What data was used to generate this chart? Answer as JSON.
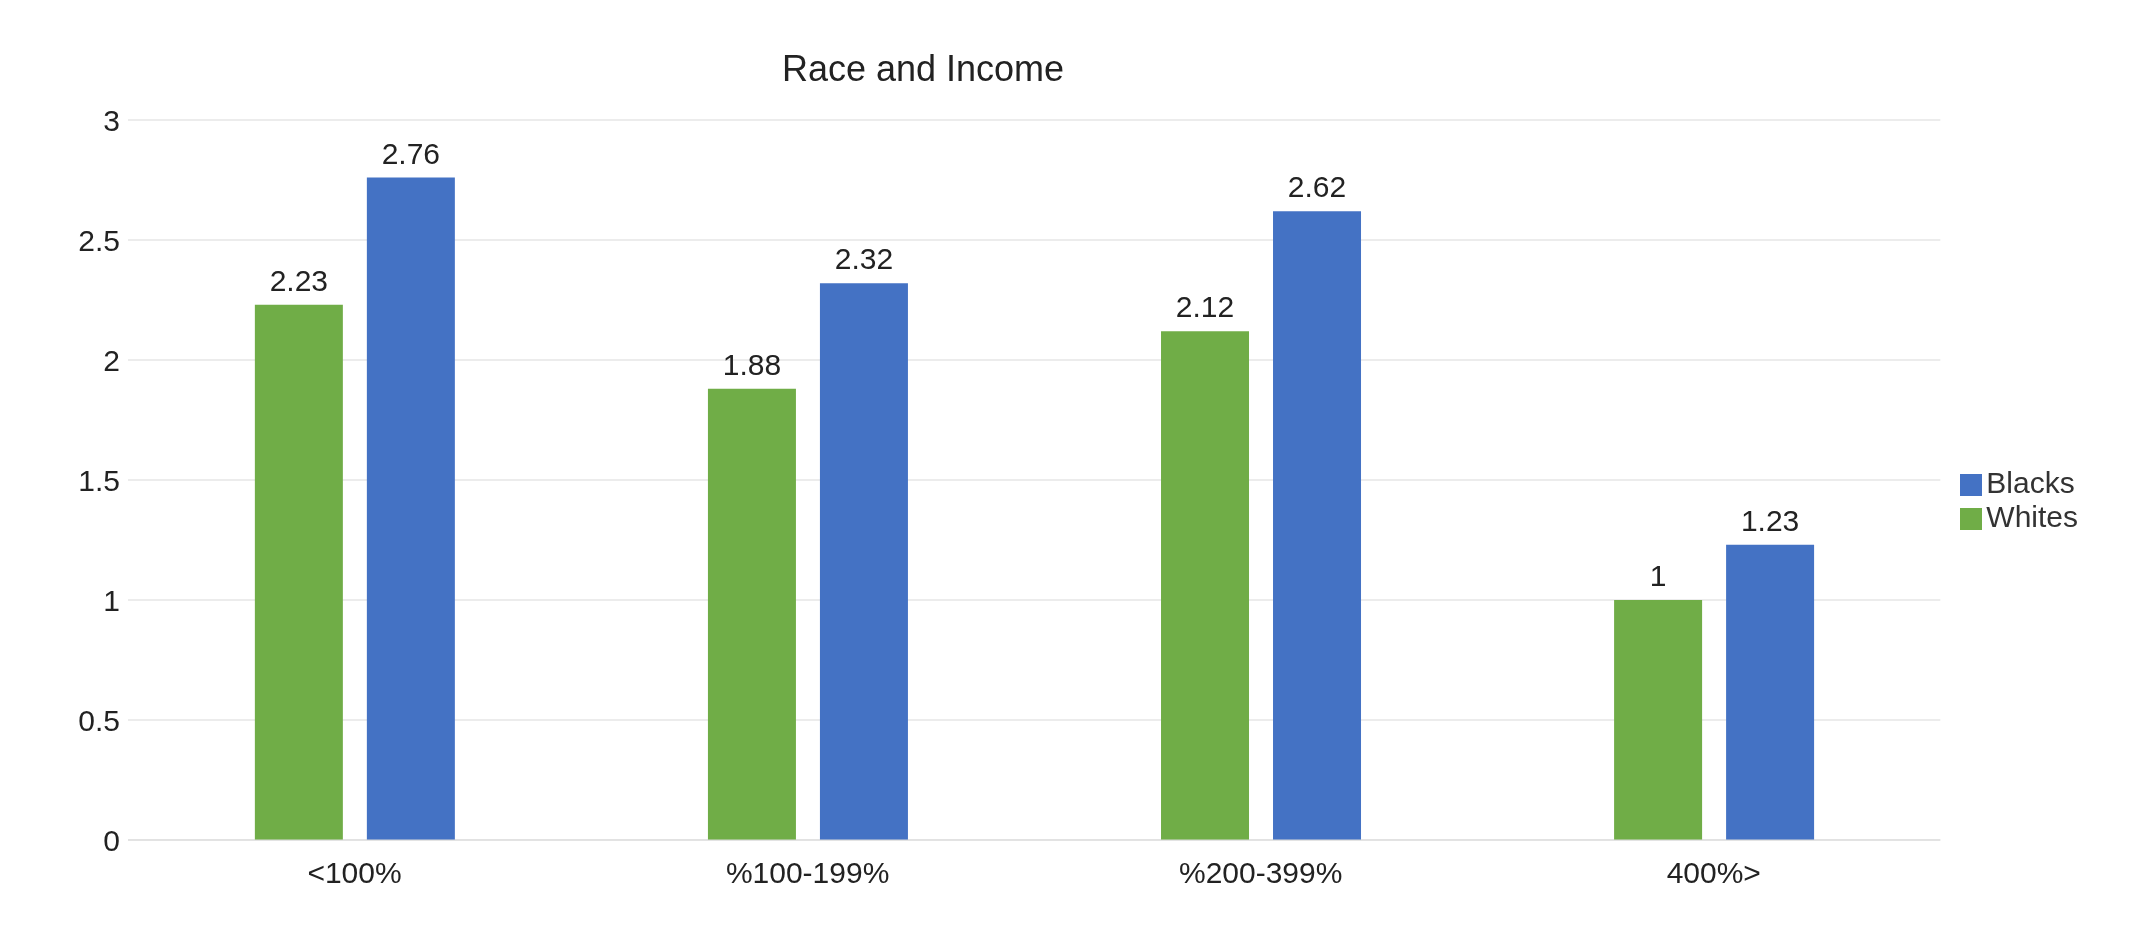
{
  "chart_data": {
    "type": "bar",
    "title": "Race and Income",
    "categories": [
      "<100%",
      "%100-199%",
      "%200-399%",
      "400%>"
    ],
    "series": [
      {
        "name": "Whites",
        "color": "#70ad47",
        "values": [
          2.23,
          1.88,
          2.12,
          1
        ]
      },
      {
        "name": "Blacks",
        "color": "#4472c4",
        "values": [
          2.76,
          2.32,
          2.62,
          1.23
        ]
      }
    ],
    "ylim": [
      0,
      3
    ],
    "yticks": [
      0,
      0.5,
      1,
      1.5,
      2,
      2.5,
      3
    ],
    "grid": "y",
    "legend": "right",
    "data_labels": true
  }
}
